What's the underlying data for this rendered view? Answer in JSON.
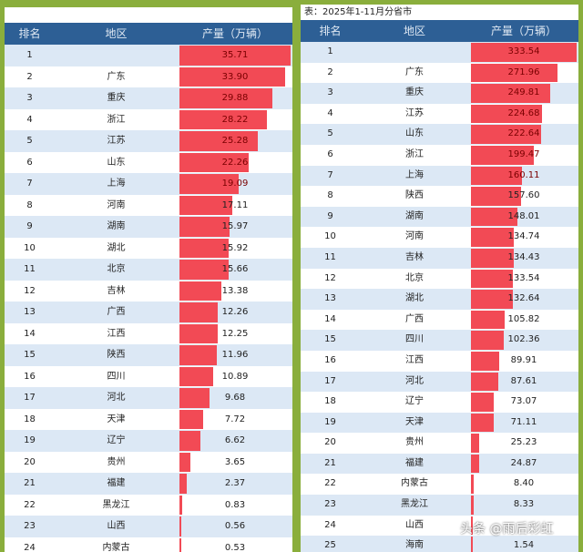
{
  "chart_data": [
    {
      "type": "table",
      "columns": [
        "排名",
        "地区",
        "产量（万辆）"
      ],
      "rows": [
        [
          1,
          "",
          35.71
        ],
        [
          2,
          "广东",
          33.9
        ],
        [
          3,
          "重庆",
          29.88
        ],
        [
          4,
          "浙江",
          28.22
        ],
        [
          5,
          "江苏",
          25.28
        ],
        [
          6,
          "山东",
          22.26
        ],
        [
          7,
          "上海",
          19.09
        ],
        [
          8,
          "河南",
          17.11
        ],
        [
          9,
          "湖南",
          15.97
        ],
        [
          10,
          "湖北",
          15.92
        ],
        [
          11,
          "北京",
          15.66
        ],
        [
          12,
          "吉林",
          13.38
        ],
        [
          13,
          "广西",
          12.26
        ],
        [
          14,
          "江西",
          12.25
        ],
        [
          15,
          "陕西",
          11.96
        ],
        [
          16,
          "四川",
          10.89
        ],
        [
          17,
          "河北",
          9.68
        ],
        [
          18,
          "天津",
          7.72
        ],
        [
          19,
          "辽宁",
          6.62
        ],
        [
          20,
          "贵州",
          3.65
        ],
        [
          21,
          "福建",
          2.37
        ],
        [
          22,
          "黑龙江",
          0.83
        ],
        [
          23,
          "山西",
          0.56
        ],
        [
          24,
          "内蒙古",
          0.53
        ]
      ],
      "bar_color": "#f24a55"
    },
    {
      "type": "table",
      "title": "表：2025年1-11月分省市",
      "columns": [
        "排名",
        "地区",
        "产量（万辆）"
      ],
      "rows": [
        [
          1,
          "",
          333.54
        ],
        [
          2,
          "广东",
          271.96
        ],
        [
          3,
          "重庆",
          249.81
        ],
        [
          4,
          "江苏",
          224.68
        ],
        [
          5,
          "山东",
          222.64
        ],
        [
          6,
          "浙江",
          199.47
        ],
        [
          7,
          "上海",
          160.11
        ],
        [
          8,
          "陕西",
          157.6
        ],
        [
          9,
          "湖南",
          148.01
        ],
        [
          10,
          "河南",
          134.74
        ],
        [
          11,
          "吉林",
          134.43
        ],
        [
          12,
          "北京",
          133.54
        ],
        [
          13,
          "湖北",
          132.64
        ],
        [
          14,
          "广西",
          105.82
        ],
        [
          15,
          "四川",
          102.36
        ],
        [
          16,
          "江西",
          89.91
        ],
        [
          17,
          "河北",
          87.61
        ],
        [
          18,
          "辽宁",
          73.07
        ],
        [
          19,
          "天津",
          71.11
        ],
        [
          20,
          "贵州",
          25.23
        ],
        [
          21,
          "福建",
          24.87
        ],
        [
          22,
          "内蒙古",
          8.4
        ],
        [
          23,
          "黑龙江",
          8.33
        ],
        [
          24,
          "山西",
          ""
        ],
        [
          25,
          "海南",
          1.54
        ]
      ],
      "bar_color": "#f24a55"
    }
  ],
  "watermark": "头条 @雨后彩虹"
}
